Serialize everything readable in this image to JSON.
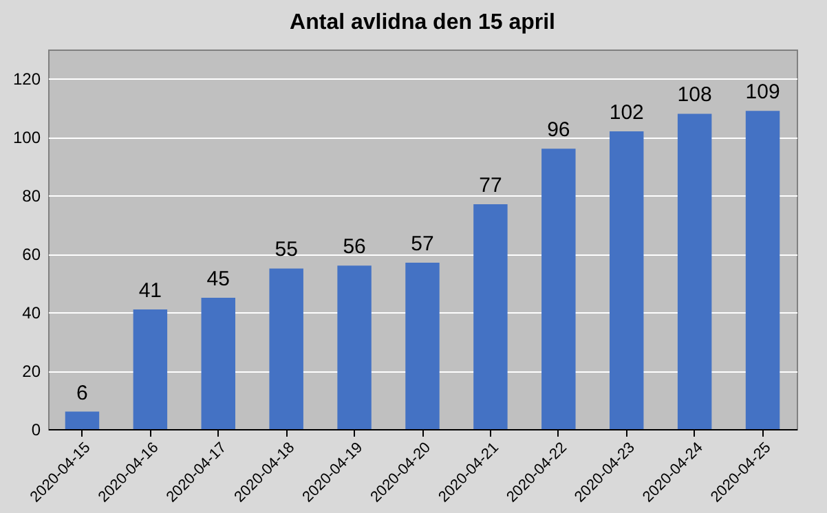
{
  "chart_data": {
    "type": "bar",
    "title": "Antal avlidna den 15 april",
    "categories": [
      "2020-04-15",
      "2020-04-16",
      "2020-04-17",
      "2020-04-18",
      "2020-04-19",
      "2020-04-20",
      "2020-04-21",
      "2020-04-22",
      "2020-04-23",
      "2020-04-24",
      "2020-04-25"
    ],
    "values": [
      6,
      41,
      45,
      55,
      56,
      57,
      77,
      96,
      102,
      108,
      109
    ],
    "color": "#4472c4",
    "ylim": [
      0,
      130
    ],
    "yticks": [
      0,
      20,
      40,
      60,
      80,
      100,
      120
    ],
    "grid": "y",
    "data_labels": true
  }
}
